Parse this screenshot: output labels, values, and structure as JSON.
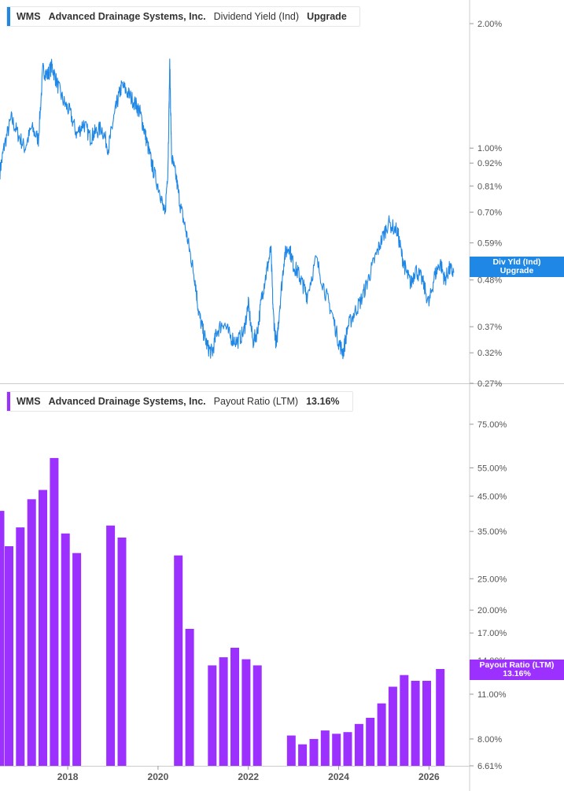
{
  "colors": {
    "yield_line": "#1f87e5",
    "payout_bar": "#9b30ff",
    "axis_text": "#555555",
    "grid": "#cccccc"
  },
  "top_panel": {
    "legend": {
      "ticker": "WMS",
      "company": "Advanced Drainage Systems, Inc.",
      "metric": "Dividend Yield (Ind)",
      "value": "Upgrade"
    },
    "tag": {
      "line1": "Div Yld (Ind)",
      "line2": "Upgrade"
    }
  },
  "bottom_panel": {
    "legend": {
      "ticker": "WMS",
      "company": "Advanced Drainage Systems, Inc.",
      "metric": "Payout Ratio (LTM)",
      "value": "13.16%"
    },
    "tag": {
      "line1": "Payout Ratio (LTM)",
      "line2": "13.16%"
    }
  },
  "chart_data": [
    {
      "type": "line",
      "name": "Dividend Yield (Ind)",
      "y_scale": "log",
      "ylim": [
        0.27,
        2.2
      ],
      "y_ticks": [
        "2.00%",
        "1.00%",
        "0.92%",
        "0.81%",
        "0.70%",
        "0.59%",
        "0.48%",
        "0.37%",
        "0.32%",
        "0.27%"
      ],
      "y_tick_values": [
        2.0,
        1.0,
        0.92,
        0.81,
        0.7,
        0.59,
        0.48,
        0.37,
        0.32,
        0.27
      ],
      "x_range": [
        2016.5,
        2026.9
      ],
      "x": [
        2016.5,
        2016.6,
        2016.75,
        2016.9,
        2017.05,
        2017.2,
        2017.35,
        2017.45,
        2017.55,
        2017.65,
        2017.75,
        2017.9,
        2018.05,
        2018.2,
        2018.35,
        2018.5,
        2018.6,
        2018.75,
        2018.9,
        2019.0,
        2019.1,
        2019.2,
        2019.35,
        2019.5,
        2019.6,
        2019.7,
        2019.8,
        2019.9,
        2020.05,
        2020.15,
        2020.22,
        2020.26,
        2020.3,
        2020.4,
        2020.5,
        2020.62,
        2020.72,
        2020.82,
        2020.9,
        2021.0,
        2021.1,
        2021.2,
        2021.3,
        2021.45,
        2021.6,
        2021.75,
        2021.9,
        2022.0,
        2022.1,
        2022.2,
        2022.3,
        2022.4,
        2022.5,
        2022.55,
        2022.62,
        2022.7,
        2022.8,
        2022.9,
        2023.0,
        2023.1,
        2023.2,
        2023.3,
        2023.5,
        2023.7,
        2023.85,
        2024.0,
        2024.1,
        2024.2,
        2024.35,
        2024.5,
        2024.65,
        2024.8,
        2024.95,
        2025.1,
        2025.3,
        2025.4,
        2025.5,
        2025.6,
        2025.7,
        2025.85,
        2026.0,
        2026.12,
        2026.25,
        2026.35,
        2026.45,
        2026.55
      ],
      "y": [
        0.88,
        1.02,
        1.18,
        1.08,
        1.0,
        1.12,
        1.05,
        1.55,
        1.5,
        1.58,
        1.45,
        1.3,
        1.22,
        1.08,
        1.15,
        1.06,
        1.09,
        1.12,
        1.0,
        1.15,
        1.3,
        1.42,
        1.35,
        1.28,
        1.22,
        1.1,
        0.98,
        0.88,
        0.78,
        0.68,
        0.9,
        1.6,
        0.95,
        0.85,
        0.72,
        0.63,
        0.55,
        0.48,
        0.4,
        0.36,
        0.33,
        0.32,
        0.36,
        0.38,
        0.35,
        0.34,
        0.36,
        0.42,
        0.34,
        0.36,
        0.44,
        0.5,
        0.57,
        0.4,
        0.33,
        0.42,
        0.55,
        0.58,
        0.52,
        0.5,
        0.47,
        0.44,
        0.54,
        0.45,
        0.4,
        0.34,
        0.32,
        0.37,
        0.4,
        0.43,
        0.48,
        0.54,
        0.6,
        0.66,
        0.63,
        0.55,
        0.5,
        0.47,
        0.51,
        0.48,
        0.42,
        0.49,
        0.53,
        0.48,
        0.51,
        0.5
      ]
    },
    {
      "type": "bar",
      "name": "Payout Ratio (LTM)",
      "y_scale": "log",
      "ylim": [
        6.61,
        90
      ],
      "y_ticks": [
        "75.00%",
        "55.00%",
        "45.00%",
        "35.00%",
        "25.00%",
        "20.00%",
        "17.00%",
        "14.00%",
        "11.00%",
        "8.00%",
        "6.61%"
      ],
      "y_tick_values": [
        75,
        55,
        45,
        35,
        25,
        20,
        17,
        14,
        11,
        8,
        6.61
      ],
      "x_ticks": [
        "2018",
        "2020",
        "2022",
        "2024",
        "2026"
      ],
      "x_tick_values": [
        2018.0,
        2020.0,
        2022.0,
        2024.0,
        2026.0
      ],
      "x_range": [
        2016.5,
        2026.9
      ],
      "x": [
        2016.5,
        2016.7,
        2016.95,
        2017.2,
        2017.45,
        2017.7,
        2017.95,
        2018.2,
        2018.95,
        2019.2,
        2020.45,
        2020.7,
        2021.2,
        2021.45,
        2021.7,
        2021.95,
        2022.2,
        2022.95,
        2023.2,
        2023.45,
        2023.7,
        2023.95,
        2024.2,
        2024.45,
        2024.7,
        2024.95,
        2025.2,
        2025.45,
        2025.7,
        2025.95,
        2026.25
      ],
      "values": [
        40.5,
        31.5,
        36,
        44,
        47,
        59,
        34.5,
        30,
        36.5,
        33.5,
        29.5,
        17.5,
        13.5,
        14.3,
        15.3,
        14.1,
        13.5,
        8.2,
        7.7,
        8,
        8.5,
        8.3,
        8.4,
        8.9,
        9.3,
        10.3,
        11.6,
        12.6,
        12.1,
        12.1,
        13.16
      ]
    }
  ]
}
